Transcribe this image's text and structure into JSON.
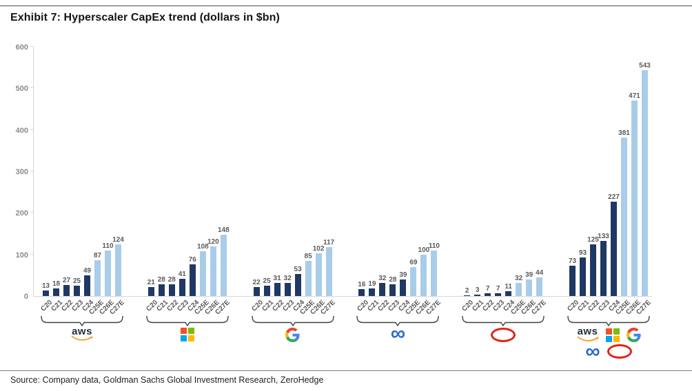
{
  "title": "Exhibit 7: Hyperscaler CapEx trend (dollars in $bn)",
  "source": "Source: Company data, Goldman Sachs Global Investment Research, ZeroHedge",
  "chart_data": {
    "type": "bar",
    "title": "Exhibit 7: Hyperscaler CapEx trend (dollars in $bn)",
    "xlabel": "",
    "ylabel": "",
    "ylim": [
      0,
      600
    ],
    "yticks": [
      0,
      100,
      200,
      300,
      400,
      500,
      600
    ],
    "grid": false,
    "legend": false,
    "categories": [
      "C20",
      "C21",
      "C22",
      "C23",
      "C24",
      "C25E",
      "C26E",
      "C27E"
    ],
    "actual_color": "#1F3864",
    "estimate_color": "#A9CCE9",
    "label_color": "#595959",
    "note": "categories ending in E are estimates drawn in light blue",
    "groups": [
      {
        "company": "AWS",
        "logos": [
          "aws"
        ],
        "values": [
          13,
          18,
          27,
          25,
          49,
          87,
          110,
          124
        ]
      },
      {
        "company": "Microsoft",
        "logos": [
          "microsoft"
        ],
        "values": [
          21,
          28,
          28,
          41,
          76,
          108,
          120,
          148
        ]
      },
      {
        "company": "Google",
        "logos": [
          "google"
        ],
        "values": [
          22,
          25,
          31,
          32,
          53,
          85,
          102,
          117
        ]
      },
      {
        "company": "Meta",
        "logos": [
          "meta"
        ],
        "values": [
          16,
          19,
          32,
          28,
          39,
          69,
          100,
          110
        ]
      },
      {
        "company": "Oracle",
        "logos": [
          "oracle"
        ],
        "values": [
          2,
          3,
          7,
          7,
          11,
          32,
          39,
          44
        ]
      },
      {
        "company": "Total",
        "logos": [
          "aws",
          "microsoft",
          "google",
          "meta",
          "oracle"
        ],
        "values": [
          73,
          93,
          125,
          133,
          227,
          381,
          471,
          543
        ]
      }
    ]
  }
}
